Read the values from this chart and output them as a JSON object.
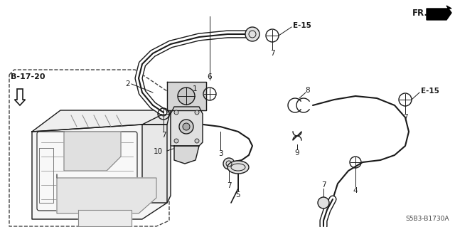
{
  "bg_color": "#ffffff",
  "line_color": "#1a1a1a",
  "part_number": "S5B3-B1730A",
  "fr_label": "FR.",
  "ref_label": "B-17-20",
  "figsize": [
    6.4,
    3.19
  ],
  "dpi": 100,
  "hose_lw": 1.8,
  "component_lw": 1.0
}
